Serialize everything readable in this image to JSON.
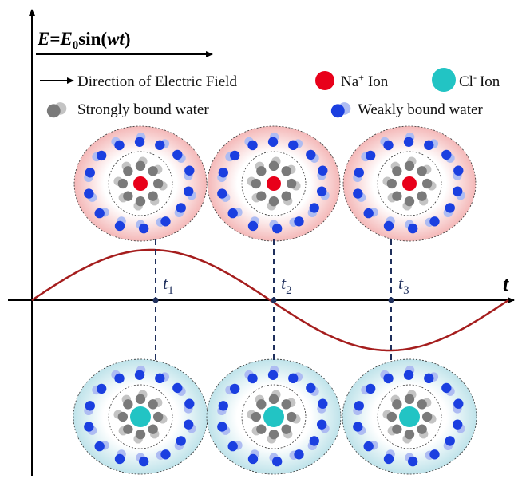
{
  "equation": {
    "field": "E",
    "equals": "=",
    "amplitude": "E",
    "amplitude_sub": "0",
    "func": "sin(",
    "arg": "wt",
    "close": ")"
  },
  "legend": {
    "field": "Direction of Electric Field",
    "na": {
      "symbol": "Na",
      "charge": "+",
      "label": "Ion"
    },
    "cl": {
      "symbol": "Cl",
      "charge": "-",
      "label": "Ion"
    },
    "strong": "Strongly bound water",
    "weak": "Weakly bound water"
  },
  "axis": {
    "label": "t"
  },
  "times": [
    {
      "symbol": "t",
      "sub": "1"
    },
    {
      "symbol": "t",
      "sub": "2"
    },
    {
      "symbol": "t",
      "sub": "3"
    }
  ]
}
